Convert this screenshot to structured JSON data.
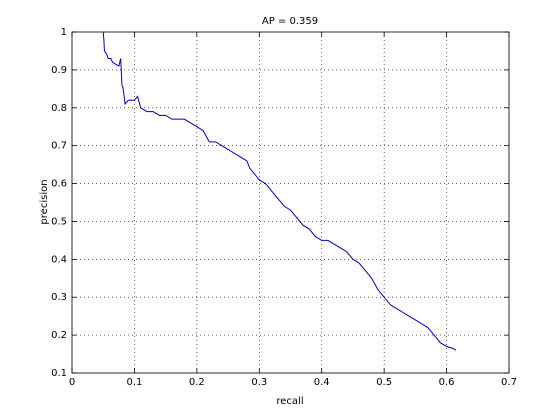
{
  "chart_data": {
    "type": "line",
    "title": "AP = 0.359",
    "x_label": "recall",
    "y_label": "precision",
    "x": [
      0.05,
      0.051,
      0.052,
      0.056,
      0.058,
      0.062,
      0.065,
      0.075,
      0.078,
      0.08,
      0.082,
      0.085,
      0.09,
      0.1,
      0.105,
      0.11,
      0.12,
      0.13,
      0.14,
      0.15,
      0.16,
      0.17,
      0.18,
      0.19,
      0.2,
      0.21,
      0.22,
      0.23,
      0.24,
      0.25,
      0.26,
      0.27,
      0.28,
      0.285,
      0.29,
      0.3,
      0.31,
      0.32,
      0.33,
      0.34,
      0.35,
      0.36,
      0.37,
      0.38,
      0.39,
      0.4,
      0.41,
      0.42,
      0.43,
      0.44,
      0.45,
      0.46,
      0.47,
      0.48,
      0.49,
      0.5,
      0.51,
      0.52,
      0.53,
      0.54,
      0.55,
      0.56,
      0.57,
      0.58,
      0.59,
      0.6,
      0.61,
      0.615
    ],
    "values": [
      1.0,
      0.98,
      0.95,
      0.94,
      0.93,
      0.93,
      0.92,
      0.91,
      0.93,
      0.86,
      0.85,
      0.81,
      0.82,
      0.82,
      0.83,
      0.8,
      0.79,
      0.79,
      0.78,
      0.78,
      0.77,
      0.77,
      0.77,
      0.76,
      0.75,
      0.74,
      0.71,
      0.71,
      0.7,
      0.69,
      0.68,
      0.67,
      0.66,
      0.64,
      0.63,
      0.61,
      0.6,
      0.58,
      0.56,
      0.54,
      0.53,
      0.51,
      0.49,
      0.48,
      0.46,
      0.45,
      0.45,
      0.44,
      0.43,
      0.42,
      0.4,
      0.39,
      0.37,
      0.35,
      0.32,
      0.3,
      0.28,
      0.27,
      0.26,
      0.25,
      0.24,
      0.23,
      0.22,
      0.2,
      0.18,
      0.17,
      0.165,
      0.16
    ],
    "color": "#0000b4",
    "xlim": [
      0,
      0.7
    ],
    "xticks": [
      0,
      0.1,
      0.2,
      0.3,
      0.4,
      0.5,
      0.6,
      0.7
    ],
    "ylim": [
      0.1,
      1
    ],
    "yticks": [
      0.1,
      0.2,
      0.3,
      0.4,
      0.5,
      0.6,
      0.7,
      0.8,
      0.9,
      1
    ],
    "grid": true
  }
}
